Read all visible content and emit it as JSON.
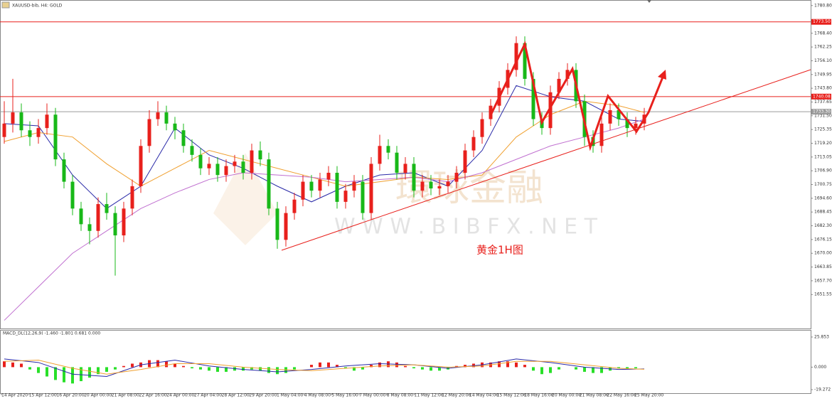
{
  "chart_data": {
    "type": "candlestick",
    "title": "XAUUSD-bib, H4:  GOLD",
    "annotation": "黄金1H图",
    "watermark": "W W W . B I B F X . N E T",
    "watermark_cn": "環球金融",
    "bull_color": "#e8201c",
    "bear_color": "#18b818",
    "ylim": [
      1637,
      1782
    ],
    "yticks": [
      {
        "value": 1780.8,
        "label": "1780.80"
      },
      {
        "value": 1768.4,
        "label": "1768.40"
      },
      1762.25,
      {
        "value": 1756.1,
        "label": "1756.10"
      },
      {
        "value": 1749.95,
        "label": "1749.95"
      },
      {
        "value": 1743.8,
        "label": "1743.80"
      },
      {
        "value": 1737.65,
        "label": "1737.65"
      },
      {
        "value": 1731.5,
        "label": "1731.50"
      },
      1725.35,
      {
        "value": 1719.2,
        "label": "1719.20"
      },
      {
        "value": 1713.05,
        "label": "1713.05"
      },
      {
        "value": 1706.9,
        "label": "1706.90"
      },
      {
        "value": 1700.75,
        "label": "1700.75"
      },
      {
        "value": 1694.6,
        "label": "1694.60"
      },
      {
        "value": 1688.45,
        "label": "1688.45"
      },
      {
        "value": 1682.3,
        "label": "1682.30"
      },
      {
        "value": 1676.15,
        "label": "1676.15"
      },
      {
        "value": 1670,
        "label": "1670.00"
      },
      {
        "value": 1663.85,
        "label": "1663.85"
      },
      {
        "value": 1657.7,
        "label": "1657.70"
      },
      {
        "value": 1651.55,
        "label": "1651.55"
      }
    ],
    "levels": [
      {
        "value": 1773.5,
        "label": "1773.50",
        "color": "#e8201c"
      },
      {
        "value": 1740.08,
        "label": "1740.08",
        "color": "#e8201c"
      },
      {
        "value": 1733.3,
        "label": "1733.30",
        "color": "#9a9a9a"
      }
    ],
    "xlabels": [
      "14 Apr 2020",
      "15 Apr 12:00",
      "16 Apr 20:00",
      "20 Apr 00:00",
      "21 Apr 08:00",
      "22 Apr 16:00",
      "24 Apr 00:00",
      "27 Apr 04:00",
      "28 Apr 12:00",
      "29 Apr 20:00",
      "1 May 04:00",
      "4 May 08:00",
      "5 May 16:00",
      "7 May 00:00",
      "8 May 08:00",
      "11 May 12:00",
      "12 May 20:00",
      "14 May 04:00",
      "15 May 12:00",
      "18 May 16:00",
      "20 May 00:00",
      "21 May 08:00",
      "22 May 16:00",
      "25 May 20:00"
    ],
    "ohlc": [
      [
        1722,
        1738,
        1719,
        1728
      ],
      [
        1728,
        1748,
        1724,
        1733
      ],
      [
        1733,
        1737,
        1722,
        1725
      ],
      [
        1725,
        1729,
        1718,
        1722
      ],
      [
        1722,
        1730,
        1719,
        1726
      ],
      [
        1726,
        1737,
        1723,
        1732
      ],
      [
        1732,
        1735,
        1709,
        1712
      ],
      [
        1712,
        1715,
        1699,
        1702
      ],
      [
        1702,
        1705,
        1687,
        1690
      ],
      [
        1690,
        1693,
        1680,
        1683
      ],
      [
        1683,
        1686,
        1674,
        1680
      ],
      [
        1680,
        1695,
        1677,
        1692
      ],
      [
        1692,
        1697,
        1685,
        1688
      ],
      [
        1688,
        1691,
        1660,
        1678
      ],
      [
        1678,
        1693,
        1675,
        1690
      ],
      [
        1690,
        1703,
        1687,
        1700
      ],
      [
        1700,
        1721,
        1697,
        1718
      ],
      [
        1718,
        1734,
        1715,
        1730
      ],
      [
        1730,
        1738,
        1727,
        1733
      ],
      [
        1733,
        1736,
        1725,
        1728
      ],
      [
        1728,
        1731,
        1721,
        1725
      ],
      [
        1725,
        1728,
        1715,
        1718
      ],
      [
        1718,
        1721,
        1711,
        1714
      ],
      [
        1714,
        1717,
        1705,
        1708
      ],
      [
        1708,
        1713,
        1705,
        1710
      ],
      [
        1710,
        1713,
        1702,
        1705
      ],
      [
        1705,
        1712,
        1702,
        1709
      ],
      [
        1709,
        1714,
        1706,
        1711
      ],
      [
        1711,
        1714,
        1703,
        1706
      ],
      [
        1706,
        1719,
        1703,
        1716
      ],
      [
        1716,
        1720,
        1709,
        1712
      ],
      [
        1712,
        1715,
        1687,
        1690
      ],
      [
        1690,
        1693,
        1672,
        1676
      ],
      [
        1676,
        1691,
        1673,
        1688
      ],
      [
        1688,
        1697,
        1685,
        1694
      ],
      [
        1694,
        1705,
        1691,
        1702
      ],
      [
        1702,
        1705,
        1695,
        1698
      ],
      [
        1698,
        1706,
        1695,
        1703
      ],
      [
        1703,
        1709,
        1700,
        1706
      ],
      [
        1706,
        1709,
        1690,
        1693
      ],
      [
        1693,
        1701,
        1690,
        1698
      ],
      [
        1698,
        1705,
        1695,
        1702
      ],
      [
        1702,
        1705,
        1685,
        1688
      ],
      [
        1688,
        1713,
        1685,
        1710
      ],
      [
        1710,
        1723,
        1707,
        1718
      ],
      [
        1718,
        1721,
        1712,
        1715
      ],
      [
        1715,
        1718,
        1703,
        1706
      ],
      [
        1706,
        1713,
        1703,
        1710
      ],
      [
        1710,
        1713,
        1695,
        1698
      ],
      [
        1698,
        1705,
        1695,
        1702
      ],
      [
        1702,
        1705,
        1696,
        1699
      ],
      [
        1699,
        1703,
        1696,
        1700
      ],
      [
        1700,
        1705,
        1697,
        1702
      ],
      [
        1702,
        1709,
        1699,
        1706
      ],
      [
        1706,
        1719,
        1703,
        1716
      ],
      [
        1716,
        1725,
        1713,
        1722
      ],
      [
        1722,
        1733,
        1719,
        1730
      ],
      [
        1730,
        1739,
        1727,
        1736
      ],
      [
        1736,
        1747,
        1733,
        1744
      ],
      [
        1744,
        1755,
        1741,
        1752
      ],
      [
        1752,
        1767,
        1749,
        1764
      ],
      [
        1764,
        1767,
        1745,
        1748
      ],
      [
        1748,
        1751,
        1727,
        1730
      ],
      [
        1730,
        1733,
        1723,
        1726
      ],
      [
        1726,
        1745,
        1723,
        1742
      ],
      [
        1742,
        1751,
        1739,
        1748
      ],
      [
        1748,
        1755,
        1745,
        1752
      ],
      [
        1752,
        1755,
        1735,
        1738
      ],
      [
        1738,
        1741,
        1718,
        1722
      ],
      [
        1722,
        1725,
        1715,
        1718
      ],
      [
        1718,
        1731,
        1715,
        1728
      ],
      [
        1728,
        1737,
        1725,
        1734
      ],
      [
        1734,
        1737,
        1727,
        1730
      ],
      [
        1730,
        1733,
        1722,
        1726
      ],
      [
        1726,
        1731,
        1723,
        1728
      ],
      [
        1728,
        1735,
        1725,
        1732
      ]
    ],
    "ma": [
      {
        "color": "#2a2aa8",
        "x": [
          0,
          4,
          8,
          12,
          16,
          20,
          24,
          28,
          32,
          36,
          40,
          44,
          48,
          52,
          56,
          60,
          64,
          68,
          72,
          75
        ],
        "values": [
          1728,
          1727,
          1705,
          1690,
          1700,
          1726,
          1714,
          1708,
          1700,
          1693,
          1700,
          1705,
          1706,
          1700,
          1716,
          1745,
          1740,
          1738,
          1730,
          1729
        ]
      },
      {
        "color": "#f0a030",
        "x": [
          0,
          4,
          8,
          12,
          16,
          20,
          24,
          28,
          32,
          36,
          40,
          44,
          48,
          52,
          56,
          60,
          64,
          68,
          72,
          75
        ],
        "values": [
          1720,
          1724,
          1722,
          1710,
          1700,
          1708,
          1716,
          1712,
          1708,
          1704,
          1700,
          1702,
          1704,
          1703,
          1705,
          1722,
          1732,
          1738,
          1736,
          1733
        ]
      },
      {
        "color": "#c070d0",
        "x": [
          0,
          4,
          8,
          12,
          16,
          20,
          24,
          28,
          32,
          36,
          40,
          44,
          48,
          52,
          56,
          60,
          64,
          68,
          72,
          75
        ],
        "values": [
          1640,
          1655,
          1670,
          1680,
          1690,
          1697,
          1703,
          1706,
          1705,
          1704,
          1702,
          1703,
          1704,
          1702,
          1706,
          1712,
          1718,
          1722,
          1726,
          1730
        ]
      }
    ],
    "macd": {
      "title": "MACD_DL(12,26,9) -1.460 -1.801 0.681 0.000",
      "ylim": [
        -19.272,
        25.853
      ],
      "yticks": [
        {
          "value": 25.853,
          "label": "25.853"
        },
        {
          "value": 0,
          "label": "0.000"
        },
        {
          "value": -19.272,
          "label": "-19.272"
        }
      ],
      "pos_color": "#e8201c",
      "neg_color": "#28e028",
      "hist": [
        5,
        4,
        3,
        -2,
        -5,
        -8,
        -11,
        -13,
        -14,
        -12,
        -9,
        -6,
        -4,
        -2,
        1,
        3,
        4,
        6,
        6,
        5,
        3,
        1,
        -1,
        -2,
        -3,
        -4,
        -4,
        -3,
        -3,
        -2,
        -3,
        -5,
        -6,
        -5,
        -2,
        0,
        2,
        4,
        4,
        2,
        -1,
        -3,
        -2,
        2,
        4,
        5,
        4,
        1,
        -1,
        -2,
        -3,
        -3,
        -2,
        1,
        2,
        3,
        4,
        4,
        5,
        5,
        4,
        2,
        -3,
        -6,
        -5,
        -2,
        0,
        -2,
        -4,
        -5,
        -5,
        -3,
        -1,
        -1,
        -1,
        0
      ],
      "lines": [
        {
          "color": "#2a2aa8",
          "x": [
            0,
            4,
            8,
            12,
            16,
            20,
            24,
            28,
            32,
            36,
            40,
            44,
            48,
            52,
            56,
            60,
            64,
            68,
            72,
            75
          ],
          "values": [
            7,
            4,
            -6,
            -8,
            2,
            6,
            1,
            -2,
            -4,
            -2,
            1,
            3,
            2,
            -1,
            2,
            7,
            4,
            0,
            -2,
            -1.5
          ]
        },
        {
          "color": "#f0a030",
          "x": [
            0,
            4,
            8,
            12,
            16,
            20,
            24,
            28,
            32,
            36,
            40,
            44,
            48,
            52,
            56,
            60,
            64,
            68,
            72,
            75
          ],
          "values": [
            5,
            6,
            -1,
            -6,
            -2,
            3,
            3,
            0,
            -2,
            -3,
            -1,
            1,
            2,
            0,
            1,
            5,
            5,
            2,
            -1,
            -1.8
          ]
        }
      ]
    }
  }
}
